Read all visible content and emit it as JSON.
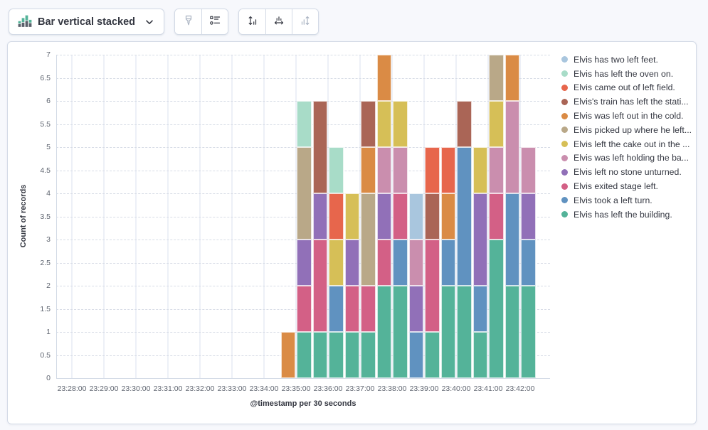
{
  "toolbar": {
    "chart_type_label": "Bar vertical stacked",
    "buttons": [
      {
        "name": "visual-options-button",
        "icon": "brush-icon",
        "disabled": true
      },
      {
        "name": "legend-settings-button",
        "icon": "legend-list-icon",
        "disabled": false
      },
      {
        "name": "left-axis-button",
        "icon": "axis-left-icon",
        "disabled": false
      },
      {
        "name": "bottom-axis-button",
        "icon": "axis-bottom-icon",
        "disabled": false
      },
      {
        "name": "right-axis-button",
        "icon": "axis-right-icon",
        "disabled": true
      }
    ]
  },
  "chart_data": {
    "type": "bar",
    "stacked": true,
    "legend_position": "right",
    "xlabel": "@timestamp per 30 seconds",
    "ylabel": "Count of records",
    "ylim": [
      0,
      7
    ],
    "y_tick_step": 0.5,
    "x_axis_tick_labels": [
      "23:28:00",
      "23:29:00",
      "23:30:00",
      "23:31:00",
      "23:32:00",
      "23:33:00",
      "23:34:00",
      "23:35:00",
      "23:36:00",
      "23:37:00",
      "23:38:00",
      "23:39:00",
      "23:40:00",
      "23:41:00",
      "23:42:00"
    ],
    "bucket_seconds": 30,
    "categories": [
      "23:34:30",
      "23:35:00",
      "23:35:30",
      "23:36:00",
      "23:36:30",
      "23:37:00",
      "23:37:30",
      "23:38:00",
      "23:38:30",
      "23:39:00",
      "23:39:30",
      "23:40:00",
      "23:40:30",
      "23:41:00",
      "23:41:30",
      "23:42:00"
    ],
    "stack_order": "reverse_of_legend",
    "series": [
      {
        "label": "Elvis has two left feet.",
        "color": "#A9C6DE",
        "values": [
          0,
          0,
          0,
          0,
          0,
          0,
          0,
          0,
          1,
          0,
          0,
          0,
          0,
          0,
          0,
          0
        ]
      },
      {
        "label": "Elvis has left the oven on.",
        "color": "#A8DCC8",
        "values": [
          0,
          1,
          0,
          1,
          0,
          0,
          0,
          0,
          0,
          0,
          0,
          0,
          0,
          0,
          0,
          0
        ]
      },
      {
        "label": "Elvis came out of left field.",
        "color": "#E7664C",
        "values": [
          0,
          0,
          0,
          1,
          0,
          0,
          0,
          0,
          0,
          1,
          1,
          0,
          0,
          0,
          0,
          0
        ]
      },
      {
        "label": "Elvis's train has left the stati...",
        "color": "#AA6556",
        "values": [
          0,
          0,
          2,
          0,
          0,
          1,
          0,
          0,
          0,
          1,
          0,
          1,
          0,
          0,
          0,
          0
        ]
      },
      {
        "label": "Elvis was left out in the cold.",
        "color": "#DA8B45",
        "values": [
          1,
          0,
          0,
          0,
          0,
          1,
          1,
          0,
          0,
          0,
          1,
          0,
          0,
          0,
          1,
          0
        ]
      },
      {
        "label": "Elvis picked up where he left...",
        "color": "#B9A888",
        "values": [
          0,
          2,
          0,
          0,
          0,
          2,
          0,
          0,
          0,
          0,
          0,
          0,
          0,
          1,
          0,
          0
        ]
      },
      {
        "label": "Elvis left the cake out in the ...",
        "color": "#D6BF57",
        "values": [
          0,
          0,
          0,
          1,
          1,
          0,
          1,
          1,
          0,
          0,
          0,
          0,
          1,
          1,
          0,
          0
        ]
      },
      {
        "label": "Elvis was left holding the ba...",
        "color": "#CA8EAE",
        "values": [
          0,
          0,
          0,
          0,
          0,
          0,
          1,
          1,
          1,
          0,
          0,
          0,
          0,
          1,
          2,
          1
        ]
      },
      {
        "label": "Elvis left no stone unturned.",
        "color": "#9170B8",
        "values": [
          0,
          1,
          1,
          0,
          1,
          0,
          1,
          0,
          1,
          0,
          0,
          0,
          2,
          0,
          0,
          1
        ]
      },
      {
        "label": "Elvis exited stage left.",
        "color": "#D36086",
        "values": [
          0,
          1,
          2,
          0,
          1,
          1,
          1,
          1,
          0,
          2,
          0,
          0,
          0,
          1,
          0,
          0
        ]
      },
      {
        "label": "Elvis took a left turn.",
        "color": "#6092C0",
        "values": [
          0,
          0,
          0,
          1,
          0,
          0,
          0,
          1,
          1,
          0,
          1,
          3,
          1,
          0,
          2,
          1
        ]
      },
      {
        "label": "Elvis has left the building.",
        "color": "#54B399",
        "values": [
          0,
          1,
          1,
          1,
          1,
          1,
          2,
          2,
          0,
          1,
          2,
          2,
          1,
          3,
          2,
          2
        ]
      }
    ]
  }
}
